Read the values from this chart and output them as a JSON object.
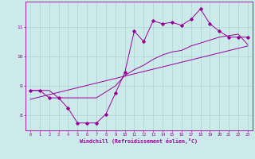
{
  "xlabel": "Windchill (Refroidissement éolien,°C)",
  "bg_color": "#cceaea",
  "line_color": "#990099",
  "grid_color": "#aad4d4",
  "x_min": -0.5,
  "x_max": 23.5,
  "y_min": 7.5,
  "y_max": 11.85,
  "yticks": [
    8,
    9,
    10,
    11
  ],
  "xticks": [
    0,
    1,
    2,
    3,
    4,
    5,
    6,
    7,
    8,
    9,
    10,
    11,
    12,
    13,
    14,
    15,
    16,
    17,
    18,
    19,
    20,
    21,
    22,
    23
  ],
  "line1_x": [
    0,
    1,
    2,
    3,
    4,
    5,
    6,
    7,
    8,
    9,
    10,
    11,
    12,
    13,
    14,
    15,
    16,
    17,
    18,
    19,
    20,
    21,
    22,
    23
  ],
  "line1_y": [
    8.85,
    8.85,
    8.6,
    8.6,
    8.25,
    7.75,
    7.75,
    7.75,
    8.05,
    8.75,
    9.45,
    10.85,
    10.5,
    11.2,
    11.1,
    11.15,
    11.05,
    11.25,
    11.6,
    11.1,
    10.85,
    10.65,
    10.65,
    10.65
  ],
  "line2_x": [
    0,
    1,
    2,
    3,
    4,
    5,
    6,
    7,
    8,
    9,
    10,
    11,
    12,
    13,
    14,
    15,
    16,
    17,
    18,
    19,
    20,
    21,
    22,
    23
  ],
  "line2_y": [
    8.85,
    8.85,
    8.85,
    8.6,
    8.6,
    8.6,
    8.6,
    8.6,
    8.8,
    9.0,
    9.35,
    9.55,
    9.7,
    9.9,
    10.05,
    10.15,
    10.2,
    10.35,
    10.45,
    10.55,
    10.65,
    10.7,
    10.75,
    10.4
  ],
  "line3_x": [
    0,
    23
  ],
  "line3_y": [
    8.55,
    10.35
  ]
}
